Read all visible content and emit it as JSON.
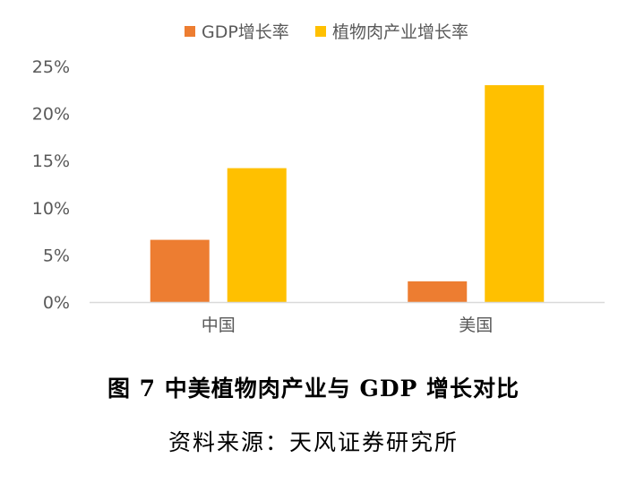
{
  "chart_data": {
    "type": "bar",
    "categories": [
      "中国",
      "美国"
    ],
    "series": [
      {
        "name": "GDP增长率",
        "values": [
          6.6,
          2.2
        ],
        "color": "#ED7D31"
      },
      {
        "name": "植物肉产业增长率",
        "values": [
          14.2,
          23.0
        ],
        "color": "#FFC000"
      }
    ],
    "ylim": [
      0,
      25
    ],
    "yticks": [
      0,
      5,
      10,
      15,
      20,
      25
    ],
    "ytick_labels": [
      "0%",
      "5%",
      "10%",
      "15%",
      "20%",
      "25%"
    ],
    "legend_position": "top-center",
    "grid": false
  },
  "caption": "图 7 中美植物肉产业与 GDP 增长对比",
  "source": "资料来源：天风证券研究所"
}
